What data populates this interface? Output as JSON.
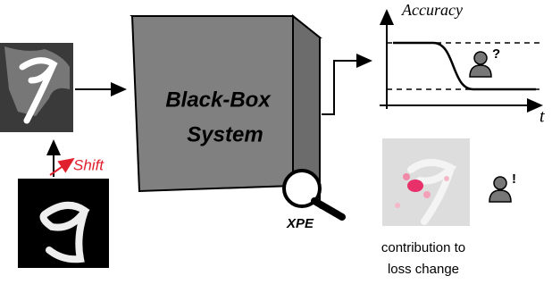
{
  "box": {
    "line1": "Black-Box",
    "line2": "System"
  },
  "shift_label": "Shift",
  "magnifier_label": "XPE",
  "plot": {
    "y_label": "Accuracy",
    "x_label": "t"
  },
  "user_marks": [
    "?",
    "!"
  ],
  "caption": [
    "contribution to",
    "loss change"
  ]
}
